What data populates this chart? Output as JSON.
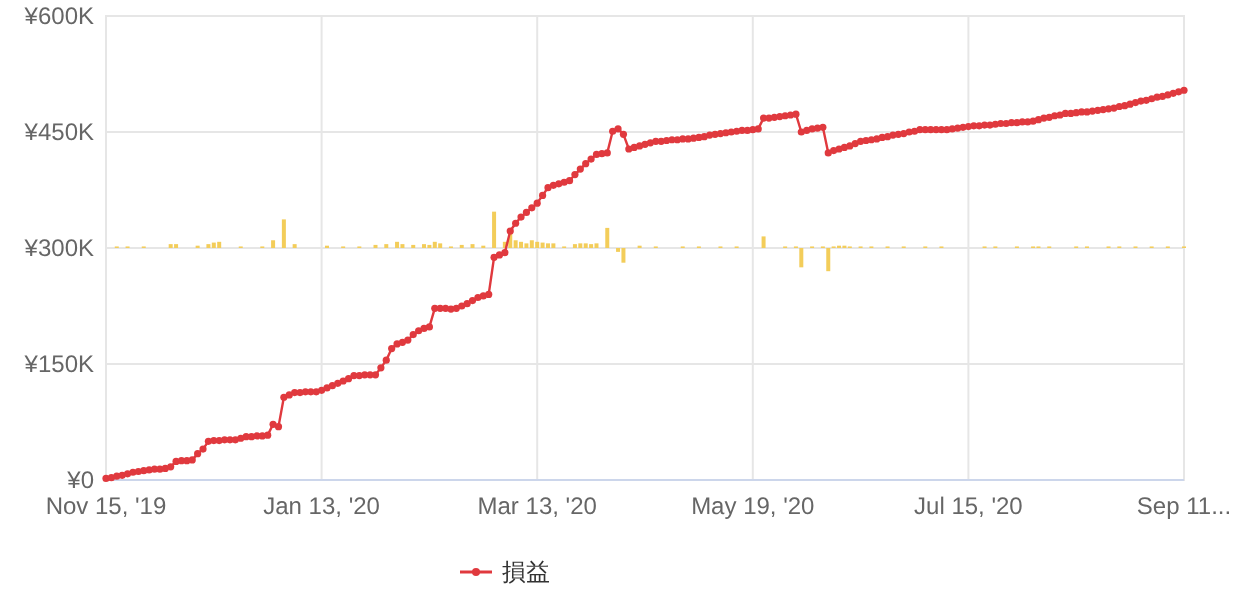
{
  "chart_data": {
    "type": "line",
    "categories": [
      "Nov 15, '19",
      null,
      null,
      null,
      null,
      null,
      null,
      null,
      null,
      null,
      null,
      null,
      null,
      null,
      null,
      null,
      null,
      null,
      null,
      null,
      null,
      null,
      null,
      null,
      null,
      null,
      null,
      null,
      null,
      null,
      null,
      null,
      null,
      null,
      null,
      null,
      null,
      null,
      null,
      null,
      "Jan 13, '20",
      null,
      null,
      null,
      null,
      null,
      null,
      null,
      null,
      null,
      null,
      null,
      null,
      null,
      null,
      null,
      null,
      null,
      null,
      null,
      null,
      null,
      null,
      null,
      null,
      null,
      null,
      null,
      null,
      null,
      null,
      null,
      null,
      null,
      null,
      null,
      null,
      null,
      null,
      null,
      "Mar 13, '20",
      null,
      null,
      null,
      null,
      null,
      null,
      null,
      null,
      null,
      null,
      null,
      null,
      null,
      null,
      null,
      null,
      null,
      null,
      null,
      null,
      null,
      null,
      null,
      null,
      null,
      null,
      null,
      null,
      null,
      null,
      null,
      null,
      null,
      null,
      null,
      null,
      null,
      null,
      null,
      "May 19, '20",
      null,
      null,
      null,
      null,
      null,
      null,
      null,
      null,
      null,
      null,
      null,
      null,
      null,
      null,
      null,
      null,
      null,
      null,
      null,
      null,
      null,
      null,
      null,
      null,
      null,
      null,
      null,
      null,
      null,
      null,
      null,
      null,
      null,
      null,
      null,
      null,
      null,
      null,
      null,
      "Jul 15, '20",
      null,
      null,
      null,
      null,
      null,
      null,
      null,
      null,
      null,
      null,
      null,
      null,
      null,
      null,
      null,
      null,
      null,
      null,
      null,
      null,
      null,
      null,
      null,
      null,
      null,
      null,
      null,
      null,
      null,
      null,
      null,
      null,
      null,
      null,
      null,
      null,
      null,
      null,
      null,
      "Sep 11..."
    ],
    "ylim": [
      0,
      600000
    ],
    "yticks": [
      {
        "value": 0,
        "label": "¥0"
      },
      {
        "value": 150000,
        "label": "¥150K"
      },
      {
        "value": 300000,
        "label": "¥300K"
      },
      {
        "value": 450000,
        "label": "¥450K"
      },
      {
        "value": 600000,
        "label": "¥600K"
      }
    ],
    "grid": true,
    "legend": "bottom",
    "series": [
      {
        "type": "bar",
        "color": "#f3cd5a",
        "values": [
          null,
          null,
          2000,
          null,
          2000,
          null,
          null,
          2000,
          null,
          null,
          null,
          null,
          5000,
          5000,
          null,
          null,
          null,
          3000,
          null,
          5000,
          7000,
          8000,
          null,
          null,
          null,
          2000,
          null,
          null,
          null,
          2000,
          null,
          10000,
          null,
          37000,
          null,
          5000,
          null,
          null,
          null,
          null,
          null,
          3000,
          null,
          null,
          2000,
          null,
          null,
          2000,
          null,
          null,
          4000,
          null,
          5000,
          null,
          8000,
          5000,
          null,
          4000,
          null,
          5000,
          4000,
          8000,
          6000,
          null,
          2000,
          null,
          4000,
          null,
          5000,
          null,
          3000,
          null,
          47000,
          null,
          8000,
          24000,
          10000,
          8000,
          6000,
          10000,
          8000,
          7000,
          6000,
          6000,
          null,
          2000,
          null,
          5000,
          6000,
          6000,
          5000,
          6000,
          null,
          26000,
          null,
          -5000,
          -19000,
          null,
          null,
          3000,
          null,
          null,
          2000,
          null,
          null,
          null,
          null,
          2000,
          null,
          null,
          2000,
          null,
          null,
          null,
          2000,
          null,
          null,
          2000,
          null,
          null,
          null,
          null,
          15000,
          null,
          null,
          null,
          2000,
          null,
          2000,
          -25000,
          null,
          2000,
          null,
          2000,
          -30000,
          2000,
          3000,
          3000,
          2000,
          null,
          2000,
          null,
          2000,
          null,
          null,
          2000,
          null,
          null,
          2000,
          null,
          null,
          null,
          2000,
          null,
          null,
          2000,
          null,
          null,
          null,
          null,
          null,
          null,
          null,
          2000,
          null,
          2000,
          null,
          null,
          null,
          2000,
          null,
          null,
          2000,
          2000,
          null,
          2000,
          null,
          null,
          null,
          null,
          2000,
          null,
          2000,
          null,
          null,
          null,
          2000,
          null,
          2000,
          null,
          null,
          2000,
          null,
          null,
          2000,
          null,
          null,
          2000,
          null,
          null,
          2000
        ],
        "base": [
          null,
          null,
          300000,
          null,
          300000,
          null,
          null,
          300000,
          null,
          null,
          null,
          null,
          300000,
          300000,
          null,
          null,
          null,
          300000,
          null,
          300000,
          300000,
          300000,
          null,
          null,
          null,
          300000,
          null,
          null,
          null,
          300000,
          null,
          300000,
          null,
          300000,
          null,
          300000,
          null,
          null,
          null,
          null,
          null,
          300000,
          null,
          null,
          300000,
          null,
          null,
          300000,
          null,
          null,
          300000,
          null,
          300000,
          null,
          300000,
          300000,
          null,
          300000,
          null,
          300000,
          300000,
          300000,
          300000,
          null,
          300000,
          null,
          300000,
          null,
          300000,
          null,
          300000,
          null,
          300000,
          null,
          300000,
          300000,
          300000,
          300000,
          300000,
          300000,
          300000,
          300000,
          300000,
          300000,
          null,
          300000,
          null,
          300000,
          300000,
          300000,
          300000,
          300000,
          null,
          300000,
          null,
          300000,
          300000,
          null,
          null,
          300000,
          null,
          null,
          300000,
          null,
          null,
          null,
          null,
          300000,
          null,
          null,
          300000,
          null,
          null,
          null,
          300000,
          null,
          null,
          300000,
          null,
          null,
          null,
          null,
          300000,
          null,
          null,
          null,
          300000,
          null,
          300000,
          300000,
          null,
          300000,
          null,
          300000,
          300000,
          300000,
          300000,
          300000,
          300000,
          null,
          300000,
          null,
          300000,
          null,
          null,
          300000,
          null,
          null,
          300000,
          null,
          null,
          null,
          300000,
          null,
          null,
          300000,
          null,
          null,
          null,
          null,
          null,
          null,
          null,
          300000,
          null,
          300000,
          null,
          null,
          null,
          300000,
          null,
          null,
          300000,
          300000,
          null,
          300000,
          null,
          null,
          null,
          null,
          300000,
          null,
          300000,
          null,
          null,
          null,
          300000,
          null,
          300000,
          null,
          null,
          300000,
          null,
          null,
          300000,
          null,
          null,
          300000,
          null,
          null,
          300000
        ]
      },
      {
        "name": "損益",
        "color": "#e0393e",
        "marker": "circle",
        "values": [
          2000,
          3000,
          5000,
          6000,
          8000,
          10000,
          11000,
          12000,
          13000,
          14000,
          14000,
          15000,
          17000,
          24000,
          25000,
          25000,
          26000,
          34000,
          40000,
          50000,
          51000,
          51000,
          52000,
          52000,
          52000,
          54000,
          56000,
          56000,
          57000,
          57000,
          58000,
          72000,
          69000,
          107000,
          110000,
          113000,
          113000,
          114000,
          114000,
          114000,
          116000,
          119000,
          122000,
          125000,
          128000,
          131000,
          135000,
          135000,
          136000,
          136000,
          136000,
          145000,
          155000,
          170000,
          176000,
          178000,
          181000,
          188000,
          193000,
          196000,
          198000,
          222000,
          222000,
          222000,
          221000,
          222000,
          225000,
          228000,
          232000,
          236000,
          238000,
          240000,
          288000,
          291000,
          294000,
          322000,
          332000,
          340000,
          346000,
          352000,
          358000,
          368000,
          378000,
          381000,
          383000,
          385000,
          387000,
          395000,
          402000,
          409000,
          415000,
          421000,
          422000,
          423000,
          451000,
          454000,
          447000,
          428000,
          430000,
          432000,
          434000,
          436000,
          438000,
          438000,
          439000,
          440000,
          440000,
          441000,
          441000,
          442000,
          443000,
          444000,
          446000,
          447000,
          448000,
          449000,
          450000,
          451000,
          452000,
          452000,
          453000,
          454000,
          468000,
          468000,
          469000,
          470000,
          471000,
          472000,
          473000,
          450000,
          452000,
          454000,
          455000,
          456000,
          423000,
          426000,
          428000,
          430000,
          432000,
          435000,
          438000,
          439000,
          440000,
          441000,
          443000,
          444000,
          446000,
          447000,
          448000,
          450000,
          451000,
          453000,
          453000,
          453000,
          453000,
          453000,
          453000,
          454000,
          455000,
          456000,
          457000,
          458000,
          458000,
          459000,
          459000,
          460000,
          461000,
          461000,
          462000,
          462000,
          463000,
          463000,
          464000,
          466000,
          468000,
          469000,
          471000,
          472000,
          474000,
          474000,
          475000,
          476000,
          476000,
          477000,
          478000,
          479000,
          480000,
          481000,
          483000,
          484000,
          486000,
          488000,
          490000,
          491000,
          493000,
          495000,
          496000,
          498000,
          500000,
          502000,
          504000
        ]
      }
    ]
  }
}
